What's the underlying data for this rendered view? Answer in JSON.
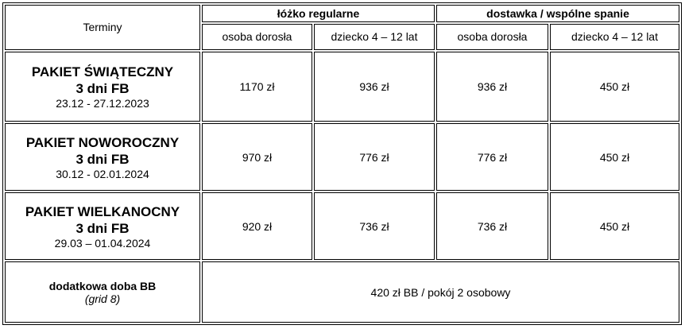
{
  "table": {
    "header": {
      "terminy": "Terminy",
      "groups": [
        "łóżko regularne",
        "dostawka / wspólne spanie"
      ],
      "subheaders": [
        "osoba dorosła",
        "dziecko 4 – 12 lat",
        "osoba dorosła",
        "dziecko 4 – 12 lat"
      ]
    },
    "rows": [
      {
        "name": "PAKIET ŚWIĄTECZNY",
        "sub": "3 dni FB",
        "dates": "23.12 - 27.12.2023",
        "prices": [
          "1170 zł",
          "936 zł",
          "936 zł",
          "450 zł"
        ]
      },
      {
        "name": "PAKIET NOWOROCZNY",
        "sub": "3 dni FB",
        "dates": "30.12 - 02.01.2024",
        "prices": [
          "970 zł",
          "776 zł",
          "776 zł",
          "450 zł"
        ]
      },
      {
        "name": "PAKIET WIELKANOCNY",
        "sub": "3 dni FB",
        "dates": "29.03 – 01.04.2024",
        "prices": [
          "920 zł",
          "736 zł",
          "736 zł",
          "450 zł"
        ]
      }
    ],
    "extra": {
      "name": "dodatkowa doba BB",
      "note": "(grid 8)",
      "price": "420 zł BB / pokój 2 osobowy"
    }
  }
}
